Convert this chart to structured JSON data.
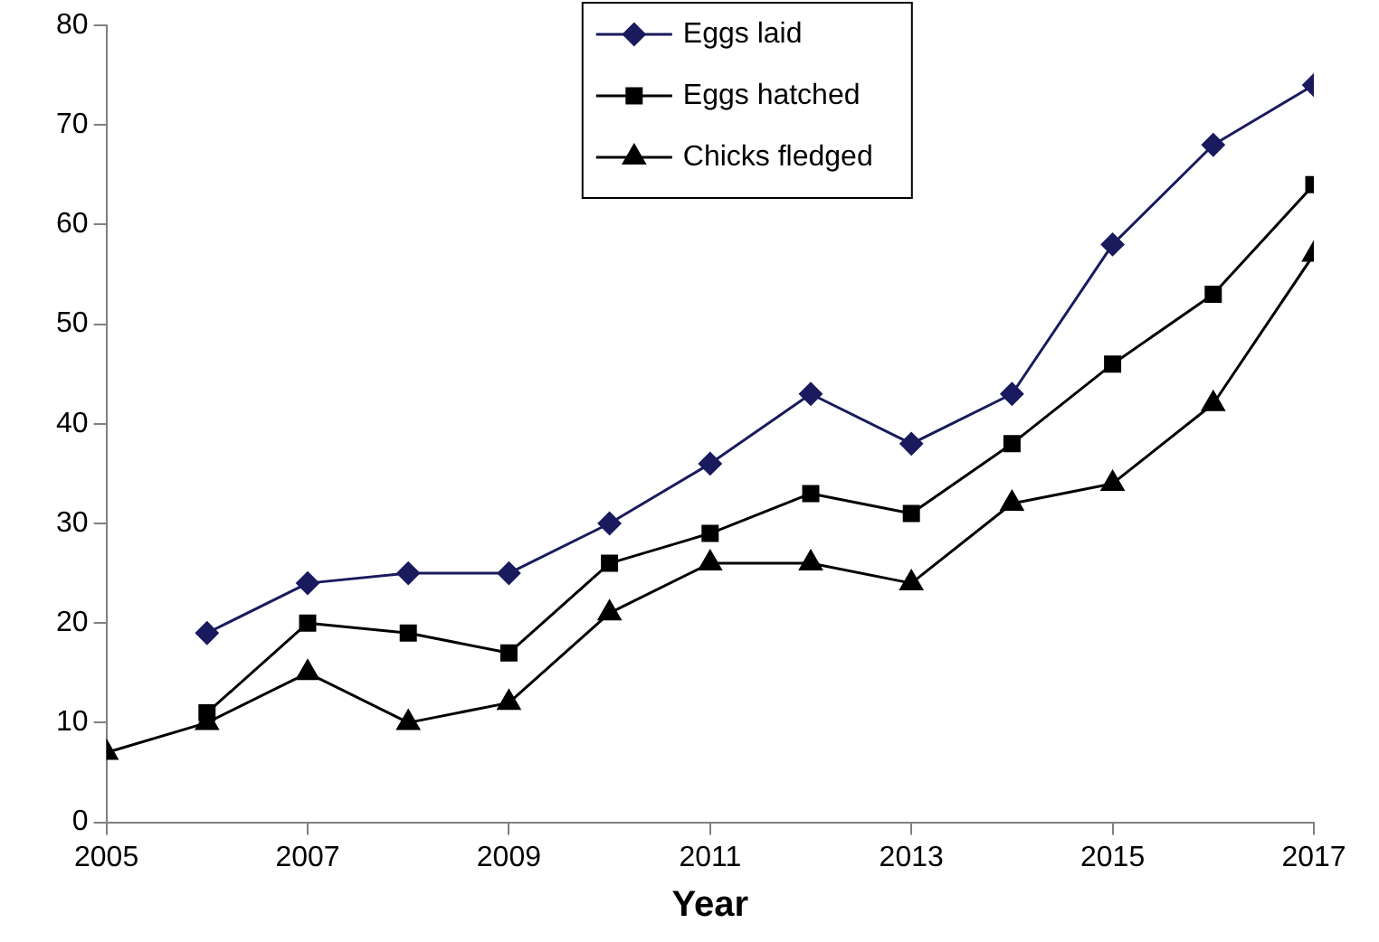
{
  "chart_data": {
    "type": "line",
    "xlabel": "Year",
    "x": [
      2005,
      2006,
      2007,
      2008,
      2009,
      2010,
      2011,
      2012,
      2013,
      2014,
      2015,
      2016,
      2017
    ],
    "xlim": [
      2005,
      2017
    ],
    "xticks": [
      2005,
      2007,
      2009,
      2011,
      2013,
      2015,
      2017
    ],
    "ylim": [
      0,
      80
    ],
    "yticks": [
      0,
      10,
      20,
      30,
      40,
      50,
      60,
      70,
      80
    ],
    "grid": false,
    "legend": "top",
    "line_style": "solid",
    "series": [
      {
        "name": "Eggs laid",
        "color": "#1a1a5e",
        "marker": "diamond",
        "values": [
          null,
          19,
          24,
          25,
          25,
          30,
          36,
          43,
          38,
          43,
          58,
          68,
          74
        ]
      },
      {
        "name": "Eggs hatched",
        "color": "#000000",
        "marker": "square",
        "values": [
          null,
          11,
          20,
          19,
          17,
          26,
          29,
          33,
          31,
          38,
          46,
          53,
          64
        ]
      },
      {
        "name": "Chicks fledged",
        "color": "#000000",
        "marker": "triangle",
        "values": [
          7,
          10,
          15,
          10,
          12,
          21,
          26,
          26,
          24,
          32,
          34,
          42,
          57
        ]
      }
    ]
  }
}
